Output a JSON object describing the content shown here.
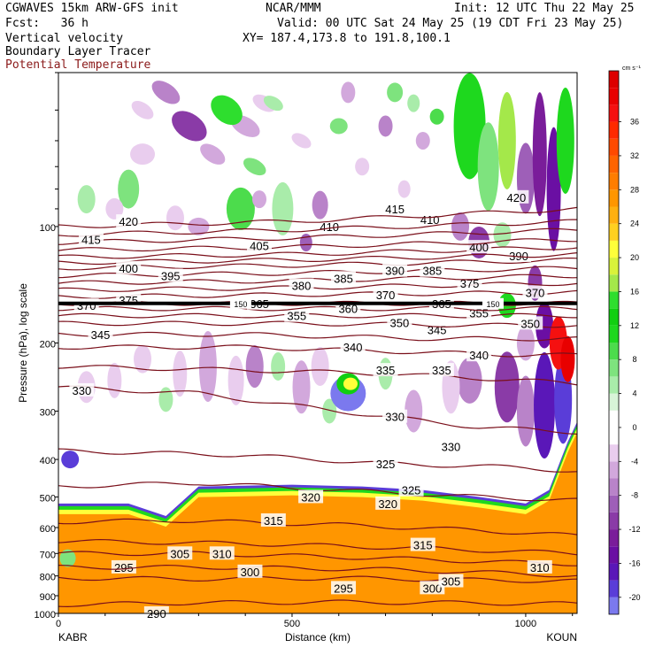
{
  "header": {
    "model": "CGWAVES 15km ARW-GFS init",
    "org": "NCAR/MMM",
    "init": "Init: 12 UTC Thu 22 May 25",
    "fcst": "Fcst:   36 h",
    "valid": "Valid: 00 UTC Sat 24 May 25 (19 CDT Fri 23 May 25)",
    "field1": "Vertical velocity",
    "field2": "Boundary Layer Tracer",
    "field3": "Potential Temperature",
    "xy": "XY= 187.4,173.8 to 191.8,100.1"
  },
  "colors": {
    "theta": "#7a0f1a",
    "header_red": "#8b1a1a"
  },
  "chart_data": {
    "type": "heatmap",
    "xlabel": "Distance (km)",
    "ylabel": "Pressure (hPa), log scale",
    "xlim": [
      0,
      1110
    ],
    "ylim": [
      1000,
      40
    ],
    "y_scale": "log",
    "x_ticks": [
      "0",
      "500",
      "1000"
    ],
    "x_tick_values": [
      0,
      500,
      1000
    ],
    "x_endpoints": {
      "left": "KABR",
      "right": "KOUN"
    },
    "y_ticks": [
      "100",
      "200",
      "300",
      "400",
      "500",
      "600",
      "700",
      "800",
      "900",
      "1000"
    ],
    "y_tick_values": [
      100,
      200,
      300,
      400,
      500,
      600,
      700,
      800,
      900,
      1000
    ],
    "colorbar": {
      "unit": "cm s⁻¹",
      "levels": [
        -22,
        -20,
        -18,
        -16,
        -14,
        -12,
        -10,
        -8,
        -6,
        -4,
        -2,
        0,
        2,
        4,
        6,
        8,
        10,
        12,
        14,
        16,
        18,
        20,
        22,
        24,
        26,
        28,
        30,
        32,
        34,
        36,
        38,
        40,
        42
      ],
      "labels": [
        "-20",
        "-16",
        "-12",
        "-8",
        "-4",
        "0",
        "4",
        "8",
        "12",
        "16",
        "20",
        "24",
        "28",
        "32",
        "36"
      ],
      "label_values": [
        -20,
        -16,
        -12,
        -8,
        -4,
        0,
        4,
        8,
        12,
        16,
        20,
        24,
        28,
        32,
        36
      ],
      "colors": [
        "#7b79ee",
        "#5a3dd8",
        "#5a17b8",
        "#6a0fa3",
        "#7a1d9a",
        "#8a3ba7",
        "#9e5fb8",
        "#b983c9",
        "#d2a8dc",
        "#e9cdee",
        "#ffffff",
        "#ffffff",
        "#d8f4d8",
        "#a9ecaa",
        "#7ee37e",
        "#4cdc4c",
        "#1ed81e",
        "#11cf11",
        "#2ede2e",
        "#a4e84a",
        "#d9f23a",
        "#ffff3a",
        "#ffd020",
        "#ffb010",
        "#ff9600",
        "#ff7d00",
        "#ff6400",
        "#ff4a00",
        "#ff2a00",
        "#f51010",
        "#e80000",
        "#dd0000"
      ]
    },
    "theta_contours": [
      {
        "value": "290",
        "p_at_x": [
          [
            0,
            950
          ],
          [
            250,
            940
          ],
          [
            600,
            935
          ],
          [
            900,
            940
          ],
          [
            1110,
            945
          ]
        ],
        "labels": [
          [
            210,
            1000
          ]
        ]
      },
      {
        "value": "295",
        "p_at_x": [
          [
            0,
            810
          ],
          [
            300,
            815
          ],
          [
            600,
            810
          ],
          [
            900,
            820
          ],
          [
            1110,
            825
          ]
        ],
        "labels": [
          [
            140,
            760
          ],
          [
            610,
            860
          ]
        ]
      },
      {
        "value": "300",
        "p_at_x": [
          [
            0,
            760
          ],
          [
            350,
            760
          ],
          [
            700,
            770
          ],
          [
            1000,
            790
          ],
          [
            1110,
            800
          ]
        ],
        "labels": [
          [
            410,
            780
          ],
          [
            800,
            860
          ]
        ]
      },
      {
        "value": "305",
        "p_at_x": [
          [
            0,
            700
          ],
          [
            300,
            700
          ],
          [
            700,
            720
          ],
          [
            1000,
            740
          ],
          [
            1110,
            745
          ]
        ],
        "labels": [
          [
            260,
            700
          ],
          [
            840,
            825
          ]
        ]
      },
      {
        "value": "310",
        "p_at_x": [
          [
            0,
            650
          ],
          [
            400,
            660
          ],
          [
            800,
            680
          ],
          [
            1110,
            700
          ]
        ],
        "labels": [
          [
            350,
            700
          ],
          [
            1030,
            760
          ]
        ]
      },
      {
        "value": "315",
        "p_at_x": [
          [
            0,
            580
          ],
          [
            250,
            575
          ],
          [
            600,
            590
          ],
          [
            900,
            610
          ],
          [
            1110,
            630
          ]
        ],
        "labels": [
          [
            460,
            575
          ],
          [
            780,
            665
          ]
        ]
      },
      {
        "value": "320",
        "p_at_x": [
          [
            0,
            470
          ],
          [
            300,
            460
          ],
          [
            600,
            480
          ],
          [
            900,
            500
          ],
          [
            1110,
            510
          ]
        ],
        "labels": [
          [
            540,
            500
          ],
          [
            705,
            520
          ]
        ]
      },
      {
        "value": "325",
        "p_at_x": [
          [
            0,
            380
          ],
          [
            400,
            390
          ],
          [
            700,
            410
          ],
          [
            1000,
            420
          ],
          [
            1110,
            430
          ]
        ],
        "labels": [
          [
            700,
            410
          ],
          [
            755,
            480
          ]
        ]
      },
      {
        "value": "330",
        "p_at_x": [
          [
            0,
            260
          ],
          [
            300,
            270
          ],
          [
            600,
            300
          ],
          [
            900,
            330
          ],
          [
            1110,
            340
          ]
        ],
        "labels": [
          [
            50,
            265
          ],
          [
            720,
            310
          ],
          [
            840,
            370
          ]
        ]
      },
      {
        "value": "335",
        "p_at_x": [
          [
            0,
            230
          ],
          [
            400,
            235
          ],
          [
            700,
            240
          ],
          [
            1000,
            250
          ],
          [
            1110,
            255
          ]
        ],
        "labels": [
          [
            700,
            235
          ],
          [
            820,
            235
          ]
        ]
      },
      {
        "value": "340",
        "p_at_x": [
          [
            0,
            205
          ],
          [
            400,
            205
          ],
          [
            700,
            210
          ],
          [
            1000,
            215
          ],
          [
            1110,
            215
          ]
        ],
        "labels": [
          [
            630,
            205
          ],
          [
            900,
            215
          ]
        ]
      },
      {
        "value": "345",
        "p_at_x": [
          [
            0,
            190
          ],
          [
            400,
            190
          ],
          [
            800,
            195
          ],
          [
            1110,
            195
          ]
        ],
        "labels": [
          [
            90,
            190
          ],
          [
            810,
            185
          ]
        ]
      },
      {
        "value": "350",
        "p_at_x": [
          [
            0,
            178
          ],
          [
            500,
            178
          ],
          [
            900,
            180
          ],
          [
            1110,
            180
          ]
        ],
        "labels": [
          [
            730,
            177
          ],
          [
            1010,
            178
          ]
        ]
      },
      {
        "value": "355",
        "p_at_x": [
          [
            0,
            170
          ],
          [
            500,
            170
          ],
          [
            900,
            170
          ],
          [
            1110,
            170
          ]
        ],
        "labels": [
          [
            510,
            170
          ],
          [
            900,
            167
          ]
        ]
      },
      {
        "value": "360",
        "p_at_x": [
          [
            0,
            163
          ],
          [
            500,
            163
          ],
          [
            900,
            163
          ],
          [
            1110,
            163
          ]
        ],
        "labels": [
          [
            620,
            163
          ]
        ]
      },
      {
        "value": "365",
        "p_at_x": [
          [
            0,
            158
          ],
          [
            500,
            158
          ],
          [
            1110,
            158
          ]
        ],
        "labels": [
          [
            430,
            158
          ],
          [
            820,
            158
          ]
        ]
      },
      {
        "value": "370",
        "p_at_x": [
          [
            0,
            152
          ],
          [
            500,
            150
          ],
          [
            1110,
            148
          ]
        ],
        "labels": [
          [
            60,
            160
          ],
          [
            700,
            150
          ],
          [
            1020,
            148
          ]
        ]
      },
      {
        "value": "375",
        "p_at_x": [
          [
            0,
            146
          ],
          [
            500,
            144
          ],
          [
            1110,
            140
          ]
        ],
        "labels": [
          [
            150,
            155
          ],
          [
            880,
            140
          ]
        ]
      },
      {
        "value": "380",
        "p_at_x": [
          [
            0,
            140
          ],
          [
            500,
            138
          ],
          [
            1110,
            134
          ]
        ],
        "labels": [
          [
            520,
            142
          ]
        ]
      },
      {
        "value": "385",
        "p_at_x": [
          [
            0,
            134
          ],
          [
            500,
            132
          ],
          [
            1110,
            128
          ]
        ],
        "labels": [
          [
            610,
            136
          ],
          [
            800,
            130
          ]
        ]
      },
      {
        "value": "390",
        "p_at_x": [
          [
            0,
            128
          ],
          [
            500,
            126
          ],
          [
            1110,
            122
          ]
        ],
        "labels": [
          [
            720,
            130
          ],
          [
            985,
            119
          ]
        ]
      },
      {
        "value": "395",
        "p_at_x": [
          [
            0,
            124
          ],
          [
            500,
            122
          ],
          [
            1110,
            118
          ]
        ],
        "labels": [
          [
            240,
            134
          ]
        ]
      },
      {
        "value": "400",
        "p_at_x": [
          [
            0,
            120
          ],
          [
            500,
            118
          ],
          [
            1110,
            113
          ]
        ],
        "labels": [
          [
            150,
            128
          ],
          [
            900,
            113
          ]
        ]
      },
      {
        "value": "405",
        "p_at_x": [
          [
            0,
            115
          ],
          [
            500,
            113
          ],
          [
            1110,
            108
          ]
        ],
        "labels": [
          [
            430,
            112
          ]
        ]
      },
      {
        "value": "410",
        "p_at_x": [
          [
            0,
            110
          ],
          [
            500,
            107
          ],
          [
            1110,
            102
          ]
        ],
        "labels": [
          [
            580,
            100
          ],
          [
            795,
            96
          ]
        ]
      },
      {
        "value": "415",
        "p_at_x": [
          [
            0,
            105
          ],
          [
            500,
            102
          ],
          [
            1110,
            97
          ]
        ],
        "labels": [
          [
            70,
            108
          ],
          [
            720,
            90
          ]
        ]
      },
      {
        "value": "420",
        "p_at_x": [
          [
            0,
            100
          ],
          [
            500,
            97
          ],
          [
            1110,
            90
          ]
        ],
        "labels": [
          [
            150,
            97
          ],
          [
            980,
            84
          ]
        ]
      }
    ],
    "tracer_150_level": 158,
    "tracer_150_labels": [
      [
        390,
        158
      ],
      [
        930,
        158
      ]
    ],
    "tracer_150_text": "150"
  }
}
